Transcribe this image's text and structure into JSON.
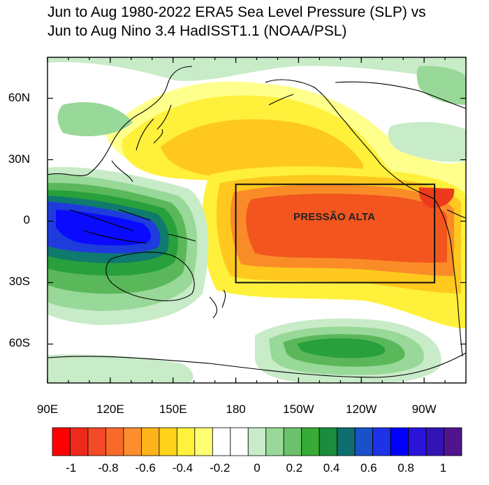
{
  "title": {
    "line1": "Jun to Aug 1980-2022 ERA5 Sea Level Pressure (SLP) vs",
    "line2": "Jun to Aug Nino 3.4 HadISST1.1 (NOAA/PSL)"
  },
  "axes": {
    "lat_labels": [
      {
        "text": "60N",
        "lat": 60
      },
      {
        "text": "30N",
        "lat": 30
      },
      {
        "text": "0",
        "lat": 0
      },
      {
        "text": "30S",
        "lat": -30
      },
      {
        "text": "60S",
        "lat": -60
      }
    ],
    "lon_labels": [
      {
        "text": "90E",
        "lon": 90
      },
      {
        "text": "120E",
        "lon": 120
      },
      {
        "text": "150E",
        "lon": 150
      },
      {
        "text": "180",
        "lon": 180
      },
      {
        "text": "150W",
        "lon": 210
      },
      {
        "text": "120W",
        "lon": 240
      },
      {
        "text": "90W",
        "lon": 270
      }
    ],
    "lon_range": [
      90,
      290
    ],
    "lat_range": [
      -79,
      80
    ]
  },
  "annotation": {
    "text": "PRESSÃO ALTA",
    "box": {
      "lon_min": 180,
      "lon_max": 275,
      "lat_min": -30,
      "lat_max": 18
    }
  },
  "colorbar": {
    "colors": [
      "#ff0000",
      "#ee2a1c",
      "#f24a26",
      "#f86a2a",
      "#fd8e2e",
      "#ffb31a",
      "#ffd21c",
      "#fff13c",
      "#ffff73",
      "#ffffff",
      "#ffffff",
      "#c8ebc8",
      "#98d898",
      "#6cc26c",
      "#36ab36",
      "#1a8c3c",
      "#0f6e6e",
      "#1a50c8",
      "#1e32e6",
      "#0000ff",
      "#2a14dc",
      "#3214b4",
      "#50148c"
    ],
    "labels": [
      {
        "text": "-1",
        "value": -1.0
      },
      {
        "text": "-0.8",
        "value": -0.8
      },
      {
        "text": "-0.6",
        "value": -0.6
      },
      {
        "text": "-0.4",
        "value": -0.4
      },
      {
        "text": "-0.2",
        "value": -0.2
      },
      {
        "text": "0",
        "value": 0
      },
      {
        "text": "0.2",
        "value": 0.2
      },
      {
        "text": "0.4",
        "value": 0.4
      },
      {
        "text": "0.6",
        "value": 0.6
      },
      {
        "text": "0.8",
        "value": 0.8
      },
      {
        "text": "1",
        "value": 1.0
      }
    ]
  },
  "field_palette": {
    "orange_red": "#f2551e",
    "orange": "#fa8c28",
    "yellow_orange": "#ffc81e",
    "yellow": "#fff03c",
    "light_yellow": "#ffff8c",
    "light_green": "#c8ebc8",
    "green": "#98d898",
    "mid_green": "#5ab85a",
    "dark_green": "#28a03c",
    "teal": "#0f7a6e",
    "blue": "#1e3cdc",
    "deep_blue": "#0a0aff"
  }
}
